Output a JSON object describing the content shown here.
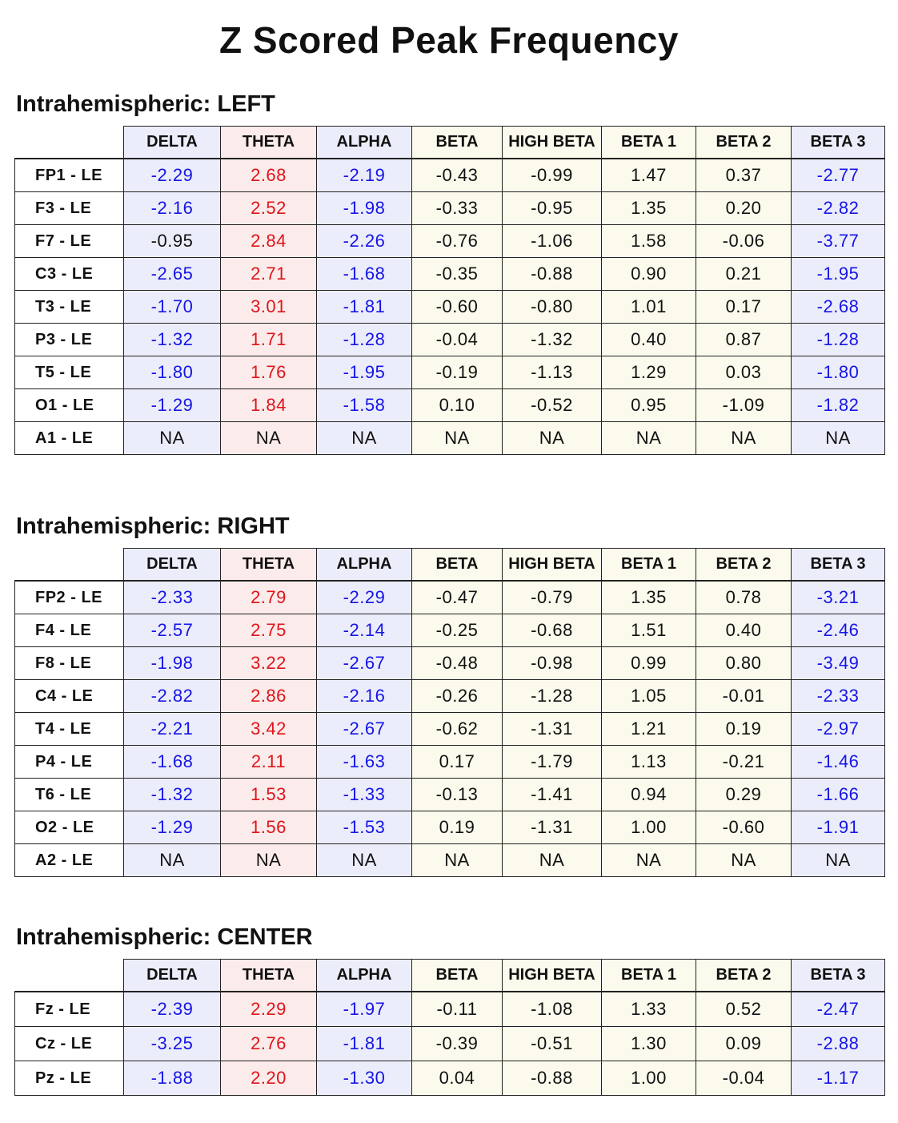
{
  "title": "Z Scored Peak Frequency",
  "columns": [
    "DELTA",
    "THETA",
    "ALPHA",
    "BETA",
    "HIGH BETA",
    "BETA 1",
    "BETA 2",
    "BETA 3"
  ],
  "colors": {
    "negative_highlight": "#1515e6",
    "positive_highlight": "#e0141a",
    "normal": "#111111"
  },
  "sections": [
    {
      "title": "Intrahemispheric:  LEFT",
      "rows": [
        {
          "label": "FP1 - LE",
          "values": [
            "-2.29",
            "2.68",
            "-2.19",
            "-0.43",
            "-0.99",
            "1.47",
            "0.37",
            "-2.77"
          ]
        },
        {
          "label": "F3 - LE",
          "values": [
            "-2.16",
            "2.52",
            "-1.98",
            "-0.33",
            "-0.95",
            "1.35",
            "0.20",
            "-2.82"
          ]
        },
        {
          "label": "F7 - LE",
          "values": [
            "-0.95",
            "2.84",
            "-2.26",
            "-0.76",
            "-1.06",
            "1.58",
            "-0.06",
            "-3.77"
          ]
        },
        {
          "label": "C3 - LE",
          "values": [
            "-2.65",
            "2.71",
            "-1.68",
            "-0.35",
            "-0.88",
            "0.90",
            "0.21",
            "-1.95"
          ]
        },
        {
          "label": "T3 - LE",
          "values": [
            "-1.70",
            "3.01",
            "-1.81",
            "-0.60",
            "-0.80",
            "1.01",
            "0.17",
            "-2.68"
          ]
        },
        {
          "label": "P3 - LE",
          "values": [
            "-1.32",
            "1.71",
            "-1.28",
            "-0.04",
            "-1.32",
            "0.40",
            "0.87",
            "-1.28"
          ]
        },
        {
          "label": "T5 - LE",
          "values": [
            "-1.80",
            "1.76",
            "-1.95",
            "-0.19",
            "-1.13",
            "1.29",
            "0.03",
            "-1.80"
          ]
        },
        {
          "label": "O1 - LE",
          "values": [
            "-1.29",
            "1.84",
            "-1.58",
            "0.10",
            "-0.52",
            "0.95",
            "-1.09",
            "-1.82"
          ]
        },
        {
          "label": "A1 - LE",
          "values": [
            "NA",
            "NA",
            "NA",
            "NA",
            "NA",
            "NA",
            "NA",
            "NA"
          ]
        }
      ]
    },
    {
      "title": "Intrahemispheric:  RIGHT",
      "rows": [
        {
          "label": "FP2 - LE",
          "values": [
            "-2.33",
            "2.79",
            "-2.29",
            "-0.47",
            "-0.79",
            "1.35",
            "0.78",
            "-3.21"
          ]
        },
        {
          "label": "F4 - LE",
          "values": [
            "-2.57",
            "2.75",
            "-2.14",
            "-0.25",
            "-0.68",
            "1.51",
            "0.40",
            "-2.46"
          ]
        },
        {
          "label": "F8 - LE",
          "values": [
            "-1.98",
            "3.22",
            "-2.67",
            "-0.48",
            "-0.98",
            "0.99",
            "0.80",
            "-3.49"
          ]
        },
        {
          "label": "C4 - LE",
          "values": [
            "-2.82",
            "2.86",
            "-2.16",
            "-0.26",
            "-1.28",
            "1.05",
            "-0.01",
            "-2.33"
          ]
        },
        {
          "label": "T4 - LE",
          "values": [
            "-2.21",
            "3.42",
            "-2.67",
            "-0.62",
            "-1.31",
            "1.21",
            "0.19",
            "-2.97"
          ]
        },
        {
          "label": "P4 - LE",
          "values": [
            "-1.68",
            "2.11",
            "-1.63",
            "0.17",
            "-1.79",
            "1.13",
            "-0.21",
            "-1.46"
          ]
        },
        {
          "label": "T6 - LE",
          "values": [
            "-1.32",
            "1.53",
            "-1.33",
            "-0.13",
            "-1.41",
            "0.94",
            "0.29",
            "-1.66"
          ]
        },
        {
          "label": "O2 - LE",
          "values": [
            "-1.29",
            "1.56",
            "-1.53",
            "0.19",
            "-1.31",
            "1.00",
            "-0.60",
            "-1.91"
          ]
        },
        {
          "label": "A2 - LE",
          "values": [
            "NA",
            "NA",
            "NA",
            "NA",
            "NA",
            "NA",
            "NA",
            "NA"
          ]
        }
      ]
    },
    {
      "title": "Intrahemispheric:  CENTER",
      "rows": [
        {
          "label": "Fz - LE",
          "values": [
            "-2.39",
            "2.29",
            "-1.97",
            "-0.11",
            "-1.08",
            "1.33",
            "0.52",
            "-2.47"
          ]
        },
        {
          "label": "Cz - LE",
          "values": [
            "-3.25",
            "2.76",
            "-1.81",
            "-0.39",
            "-0.51",
            "1.30",
            "0.09",
            "-2.88"
          ]
        },
        {
          "label": "Pz - LE",
          "values": [
            "-1.88",
            "2.20",
            "-1.30",
            "0.04",
            "-0.88",
            "1.00",
            "-0.04",
            "-1.17"
          ]
        }
      ]
    }
  ]
}
